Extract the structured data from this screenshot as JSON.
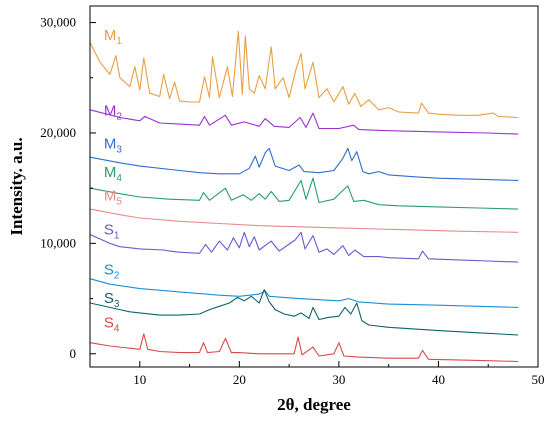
{
  "chart_data": {
    "type": "line",
    "xlabel": "2θ, degree",
    "ylabel": "Intensity. a.u.",
    "xlim": [
      5,
      50
    ],
    "ylim": [
      -1200,
      31500
    ],
    "x_ticks": [
      "10",
      "20",
      "30",
      "40",
      "50"
    ],
    "y_ticks": [
      "0",
      "10,000",
      "20,000",
      "30,000"
    ],
    "grid": false,
    "series": [
      {
        "name": "M1",
        "label_main": "M",
        "label_sub": "1",
        "color": "#e8a040",
        "points": [
          [
            5,
            28200
          ],
          [
            6,
            26400
          ],
          [
            7,
            25300
          ],
          [
            7.6,
            27000
          ],
          [
            8,
            25000
          ],
          [
            9,
            24200
          ],
          [
            9.5,
            26000
          ],
          [
            10,
            23900
          ],
          [
            10.4,
            26800
          ],
          [
            11,
            23600
          ],
          [
            12,
            23300
          ],
          [
            12.4,
            25300
          ],
          [
            13,
            23100
          ],
          [
            13.5,
            24600
          ],
          [
            14,
            22900
          ],
          [
            15,
            22800
          ],
          [
            16,
            22800
          ],
          [
            16.5,
            25100
          ],
          [
            17,
            23200
          ],
          [
            17.3,
            26900
          ],
          [
            18,
            23200
          ],
          [
            18.8,
            26000
          ],
          [
            19.3,
            23300
          ],
          [
            19.9,
            29200
          ],
          [
            20.3,
            23500
          ],
          [
            20.6,
            28800
          ],
          [
            21,
            24000
          ],
          [
            21.5,
            23600
          ],
          [
            22,
            25200
          ],
          [
            22.6,
            24000
          ],
          [
            23.2,
            27800
          ],
          [
            23.6,
            24000
          ],
          [
            24.4,
            25000
          ],
          [
            25,
            23200
          ],
          [
            25.7,
            25800
          ],
          [
            26.2,
            27200
          ],
          [
            26.6,
            24000
          ],
          [
            27.4,
            26400
          ],
          [
            28,
            23200
          ],
          [
            28.8,
            24000
          ],
          [
            29.5,
            22800
          ],
          [
            30.4,
            24200
          ],
          [
            31,
            22600
          ],
          [
            31.6,
            23600
          ],
          [
            32.2,
            22400
          ],
          [
            33,
            23000
          ],
          [
            34,
            22100
          ],
          [
            35,
            22300
          ],
          [
            36,
            21900
          ],
          [
            38,
            21800
          ],
          [
            38.3,
            22700
          ],
          [
            39,
            21800
          ],
          [
            40,
            21700
          ],
          [
            42,
            21600
          ],
          [
            44,
            21600
          ],
          [
            45.5,
            21800
          ],
          [
            46,
            21500
          ],
          [
            48,
            21400
          ]
        ]
      },
      {
        "name": "M2",
        "label_main": "M",
        "label_sub": "2",
        "color": "#9933cc",
        "points": [
          [
            5,
            22100
          ],
          [
            8,
            21400
          ],
          [
            10,
            21100
          ],
          [
            10.5,
            21500
          ],
          [
            12,
            20900
          ],
          [
            14,
            20800
          ],
          [
            16,
            20700
          ],
          [
            16.5,
            21500
          ],
          [
            17,
            20700
          ],
          [
            18.6,
            21600
          ],
          [
            19.2,
            20700
          ],
          [
            20.5,
            21000
          ],
          [
            22,
            20600
          ],
          [
            22.6,
            21300
          ],
          [
            23.5,
            20600
          ],
          [
            25,
            20500
          ],
          [
            26.1,
            21400
          ],
          [
            26.7,
            20500
          ],
          [
            27.4,
            21800
          ],
          [
            28,
            20400
          ],
          [
            30,
            20400
          ],
          [
            31.5,
            20700
          ],
          [
            32,
            20300
          ],
          [
            35,
            20200
          ],
          [
            40,
            20100
          ],
          [
            45,
            20000
          ],
          [
            48,
            19900
          ]
        ]
      },
      {
        "name": "M3",
        "label_main": "M",
        "label_sub": "3",
        "color": "#2e6ecf",
        "points": [
          [
            5,
            17800
          ],
          [
            8,
            17300
          ],
          [
            10,
            17000
          ],
          [
            14,
            16600
          ],
          [
            16,
            16400
          ],
          [
            18,
            16300
          ],
          [
            20,
            16300
          ],
          [
            21,
            16800
          ],
          [
            21.6,
            17900
          ],
          [
            22,
            16900
          ],
          [
            22.6,
            18200
          ],
          [
            23,
            18600
          ],
          [
            23.6,
            17000
          ],
          [
            25,
            16600
          ],
          [
            26,
            17100
          ],
          [
            26.5,
            16500
          ],
          [
            28,
            16400
          ],
          [
            29.5,
            16600
          ],
          [
            30.4,
            17700
          ],
          [
            30.9,
            18600
          ],
          [
            31.3,
            17500
          ],
          [
            31.8,
            18300
          ],
          [
            32.4,
            16500
          ],
          [
            33,
            16300
          ],
          [
            34,
            16500
          ],
          [
            35,
            16200
          ],
          [
            38,
            16000
          ],
          [
            40,
            15900
          ],
          [
            44,
            15800
          ],
          [
            48,
            15700
          ]
        ]
      },
      {
        "name": "M4",
        "label_main": "M",
        "label_sub": "4",
        "color": "#2a9d6e",
        "points": [
          [
            5,
            15000
          ],
          [
            8,
            14500
          ],
          [
            10,
            14200
          ],
          [
            13,
            14000
          ],
          [
            16,
            13900
          ],
          [
            16.4,
            14600
          ],
          [
            17,
            13900
          ],
          [
            18.6,
            15000
          ],
          [
            19.2,
            13900
          ],
          [
            20.4,
            14400
          ],
          [
            21.2,
            13900
          ],
          [
            22,
            14500
          ],
          [
            22.6,
            14000
          ],
          [
            23.2,
            14700
          ],
          [
            24,
            13800
          ],
          [
            25,
            13900
          ],
          [
            26.2,
            15700
          ],
          [
            26.7,
            14000
          ],
          [
            27.4,
            15900
          ],
          [
            28,
            13700
          ],
          [
            29.5,
            14000
          ],
          [
            30.4,
            14800
          ],
          [
            30.9,
            15200
          ],
          [
            31.5,
            13800
          ],
          [
            32.5,
            13900
          ],
          [
            34,
            13500
          ],
          [
            36,
            13400
          ],
          [
            40,
            13300
          ],
          [
            44,
            13200
          ],
          [
            48,
            13100
          ]
        ]
      },
      {
        "name": "M5",
        "label_main": "M",
        "label_sub": "5",
        "color": "#e88a8a",
        "points": [
          [
            5,
            13100
          ],
          [
            8,
            12600
          ],
          [
            10,
            12300
          ],
          [
            14,
            12000
          ],
          [
            18,
            11800
          ],
          [
            22,
            11600
          ],
          [
            26,
            11500
          ],
          [
            30,
            11400
          ],
          [
            34,
            11300
          ],
          [
            38,
            11200
          ],
          [
            42,
            11100
          ],
          [
            48,
            11000
          ]
        ]
      },
      {
        "name": "S1",
        "label_main": "S",
        "label_sub": "1",
        "color": "#6a5acd",
        "points": [
          [
            5,
            10800
          ],
          [
            7,
            10000
          ],
          [
            8,
            9700
          ],
          [
            10,
            9500
          ],
          [
            12.4,
            9400
          ],
          [
            13,
            9300
          ],
          [
            14,
            9200
          ],
          [
            16,
            9100
          ],
          [
            16.6,
            9900
          ],
          [
            17.2,
            9200
          ],
          [
            18,
            10200
          ],
          [
            18.8,
            9400
          ],
          [
            19.4,
            10500
          ],
          [
            20,
            9600
          ],
          [
            20.5,
            11000
          ],
          [
            21,
            9700
          ],
          [
            21.5,
            10600
          ],
          [
            22,
            9400
          ],
          [
            23.2,
            10200
          ],
          [
            24,
            9300
          ],
          [
            25.6,
            10300
          ],
          [
            26.2,
            11000
          ],
          [
            26.6,
            9500
          ],
          [
            27.4,
            10700
          ],
          [
            28,
            9200
          ],
          [
            28.8,
            9500
          ],
          [
            29.5,
            9000
          ],
          [
            30.4,
            9800
          ],
          [
            31,
            8900
          ],
          [
            31.6,
            9400
          ],
          [
            32.5,
            8800
          ],
          [
            34,
            8800
          ],
          [
            35,
            8700
          ],
          [
            38,
            8600
          ],
          [
            38.4,
            9300
          ],
          [
            39,
            8600
          ],
          [
            42,
            8500
          ],
          [
            45,
            8400
          ],
          [
            48,
            8300
          ]
        ]
      },
      {
        "name": "S2",
        "label_main": "S",
        "label_sub": "2",
        "color": "#1a8fd8",
        "points": [
          [
            5,
            6800
          ],
          [
            7,
            6300
          ],
          [
            10,
            5900
          ],
          [
            14,
            5600
          ],
          [
            18,
            5300
          ],
          [
            20,
            5200
          ],
          [
            22,
            5400
          ],
          [
            22.6,
            5700
          ],
          [
            23,
            5200
          ],
          [
            26,
            5000
          ],
          [
            28,
            4900
          ],
          [
            30,
            4800
          ],
          [
            31,
            5000
          ],
          [
            32,
            4700
          ],
          [
            35,
            4500
          ],
          [
            40,
            4400
          ],
          [
            44,
            4300
          ],
          [
            48,
            4200
          ]
        ]
      },
      {
        "name": "S3",
        "label_main": "S",
        "label_sub": "3",
        "color": "#10626c",
        "points": [
          [
            5,
            4600
          ],
          [
            7,
            4200
          ],
          [
            8,
            4000
          ],
          [
            9,
            3800
          ],
          [
            10,
            3700
          ],
          [
            12,
            3500
          ],
          [
            14,
            3500
          ],
          [
            16,
            3600
          ],
          [
            17,
            4000
          ],
          [
            18,
            4300
          ],
          [
            19,
            4600
          ],
          [
            19.8,
            5100
          ],
          [
            20.5,
            4800
          ],
          [
            21.2,
            5200
          ],
          [
            22,
            4600
          ],
          [
            22.5,
            5800
          ],
          [
            23,
            4700
          ],
          [
            23.6,
            4000
          ],
          [
            24.5,
            3600
          ],
          [
            25.5,
            3400
          ],
          [
            26.2,
            3700
          ],
          [
            27,
            3200
          ],
          [
            27.4,
            4200
          ],
          [
            28,
            3100
          ],
          [
            29,
            3300
          ],
          [
            30,
            3400
          ],
          [
            30.6,
            4200
          ],
          [
            31.2,
            3600
          ],
          [
            31.8,
            4600
          ],
          [
            32.3,
            3000
          ],
          [
            33,
            2600
          ],
          [
            35,
            2400
          ],
          [
            40,
            2100
          ],
          [
            44,
            1900
          ],
          [
            48,
            1700
          ]
        ]
      },
      {
        "name": "S4",
        "label_main": "S",
        "label_sub": "4",
        "color": "#d84a4a",
        "points": [
          [
            5,
            1000
          ],
          [
            7,
            700
          ],
          [
            9,
            500
          ],
          [
            10,
            400
          ],
          [
            10.4,
            1800
          ],
          [
            10.8,
            400
          ],
          [
            12,
            200
          ],
          [
            14,
            100
          ],
          [
            16,
            100
          ],
          [
            16.4,
            1000
          ],
          [
            16.8,
            100
          ],
          [
            18,
            200
          ],
          [
            18.6,
            1400
          ],
          [
            19.2,
            100
          ],
          [
            20,
            100
          ],
          [
            22,
            0
          ],
          [
            25.5,
            0
          ],
          [
            25.9,
            1500
          ],
          [
            26.3,
            -100
          ],
          [
            27.4,
            600
          ],
          [
            28,
            -200
          ],
          [
            29.5,
            0
          ],
          [
            30,
            1000
          ],
          [
            30.5,
            -200
          ],
          [
            32,
            -300
          ],
          [
            35,
            -400
          ],
          [
            38,
            -400
          ],
          [
            38.4,
            300
          ],
          [
            39,
            -500
          ],
          [
            44,
            -600
          ],
          [
            48,
            -700
          ]
        ]
      }
    ],
    "label_anchors": [
      {
        "name": "M1",
        "x": 6.4,
        "y": 28400
      },
      {
        "name": "M2",
        "x": 6.4,
        "y": 21600
      },
      {
        "name": "M3",
        "x": 6.4,
        "y": 18600
      },
      {
        "name": "M4",
        "x": 6.4,
        "y": 16000
      },
      {
        "name": "M5",
        "x": 6.4,
        "y": 13900
      },
      {
        "name": "S1",
        "x": 6.4,
        "y": 10800
      },
      {
        "name": "S2",
        "x": 6.4,
        "y": 7200
      },
      {
        "name": "S3",
        "x": 6.4,
        "y": 4600
      },
      {
        "name": "S4",
        "x": 6.4,
        "y": 2400
      }
    ]
  }
}
